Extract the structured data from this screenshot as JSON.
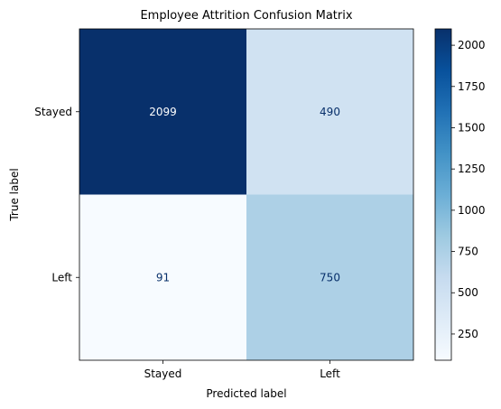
{
  "chart_data": {
    "type": "heatmap",
    "title": "Employee Attrition Confusion Matrix",
    "xlabel": "Predicted label",
    "ylabel": "True label",
    "x_categories": [
      "Stayed",
      "Left"
    ],
    "y_categories": [
      "Stayed",
      "Left"
    ],
    "matrix": [
      [
        2099,
        490
      ],
      [
        91,
        750
      ]
    ],
    "colormap": "Blues",
    "color_low": "#f7fbff",
    "color_high": "#08306b",
    "colorbar": {
      "vmin": 91,
      "vmax": 2099,
      "ticks": [
        250,
        500,
        750,
        1000,
        1250,
        1500,
        1750,
        2000
      ]
    },
    "grid": false
  }
}
